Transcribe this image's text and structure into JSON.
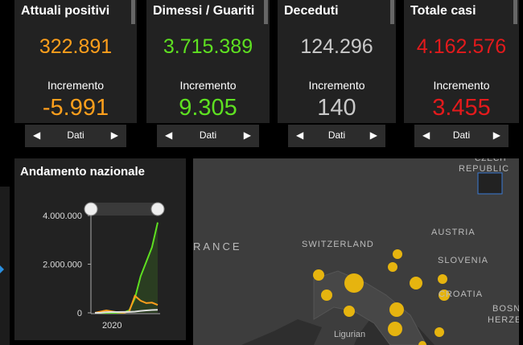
{
  "cards": [
    {
      "title": "Attuali positivi",
      "value": "322.891",
      "increment_label": "Incremento",
      "increment": "-5.991",
      "nav": "Dati",
      "color": "#ff9f1c"
    },
    {
      "title": "Dimessi / Guariti",
      "value": "3.715.389",
      "increment_label": "Incremento",
      "increment": "9.305",
      "nav": "Dati",
      "color": "#5ee021"
    },
    {
      "title": "Deceduti",
      "value": "124.296",
      "increment_label": "Incremento",
      "increment": "140",
      "nav": "Dati",
      "color": "#c9c9c9"
    },
    {
      "title": "Totale casi",
      "value": "4.162.576",
      "increment_label": "Incremento",
      "increment": "3.455",
      "nav": "Dati",
      "color": "#e31a1c"
    }
  ],
  "chart_data": {
    "type": "line",
    "title": "Andamento nazionale",
    "categories": [
      null,
      null,
      null,
      "2020",
      null,
      null,
      null,
      null,
      null,
      null,
      null,
      null
    ],
    "series": [
      {
        "name": "Dimessi / Guariti",
        "color": "#5ee021",
        "values": [
          0,
          0,
          0,
          0,
          0,
          10000,
          100000,
          600000,
          1500000,
          2100000,
          2700000,
          3715389
        ]
      },
      {
        "name": "Attuali positivi",
        "color": "#ff9f1c",
        "values": [
          0,
          50000,
          100000,
          60000,
          20000,
          10000,
          50000,
          700000,
          500000,
          400000,
          420000,
          322891
        ]
      },
      {
        "name": "Deceduti",
        "color": "#e0e0e0",
        "values": [
          0,
          5000,
          30000,
          35000,
          35000,
          36000,
          38000,
          50000,
          80000,
          100000,
          115000,
          124296
        ]
      }
    ],
    "ylim": [
      0,
      4000000
    ],
    "yticks": [
      {
        "value": 0,
        "label": "0"
      },
      {
        "value": 2000000,
        "label": "2.000.000"
      },
      {
        "value": 4000000,
        "label": "4.000.000"
      }
    ]
  },
  "map": {
    "labels": [
      "RANCE",
      "SWITZERLAND",
      "AUSTRIA",
      "SLOVENIA",
      "CROATIA",
      "CZECH",
      "REPUBLIC",
      "BOSN",
      "HERZE",
      "Ligurian"
    ]
  }
}
